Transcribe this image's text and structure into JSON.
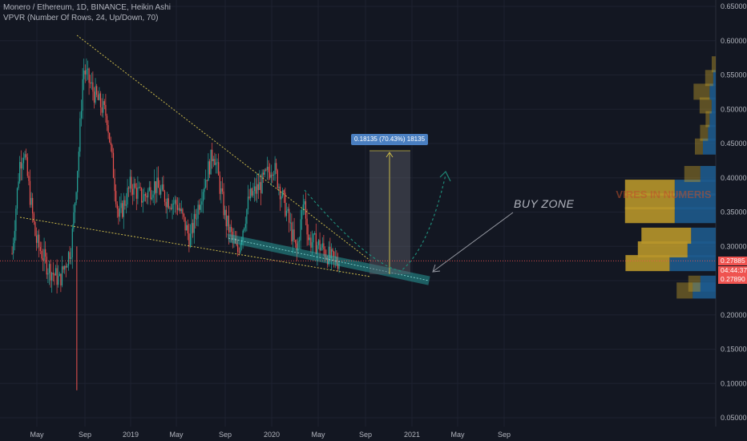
{
  "header": {
    "title": "Monero / Ethereum, 1D, BINANCE, Heikin Ashi",
    "indicator": "VPVR (Number Of Rows, 24, Up/Down, 70)"
  },
  "price_tags": {
    "last": "0.27885",
    "countdown": "04:44:37",
    "low": "0.27890"
  },
  "annotations": {
    "buy_zone": "BUY ZONE",
    "measure": "0.18135 (70.43%) 18135",
    "watermark": "VIRES IN NUMERIS"
  },
  "colors": {
    "background": "#131722",
    "up_candle": "#26a69a",
    "down_candle": "#ef5350",
    "trend_line": "#c9b84a",
    "channel": "#2bb5b0",
    "vp_up": "#1e5a8c",
    "vp_down": "#b8962a",
    "last_price_line": "#ef5350"
  },
  "chart_data": {
    "type": "candlestick",
    "title": "Monero / Ethereum, 1D, BINANCE, Heikin Ashi",
    "y_axis": {
      "ticks": [
        "0.65000",
        "0.60000",
        "0.55000",
        "0.50000",
        "0.45000",
        "0.40000",
        "0.35000",
        "0.30000",
        "0.25000",
        "0.20000",
        "0.15000",
        "0.10000",
        "0.05000"
      ],
      "range": [
        0.05,
        0.65
      ]
    },
    "x_axis": {
      "ticks": [
        "May",
        "Sep",
        "2019",
        "May",
        "Sep",
        "2020",
        "May",
        "Sep",
        "2021",
        "May",
        "Sep"
      ]
    },
    "price_path": [
      {
        "date": "2018-03",
        "price": 0.29
      },
      {
        "date": "2018-03-20",
        "price": 0.42
      },
      {
        "date": "2018-04",
        "price": 0.44
      },
      {
        "date": "2018-05",
        "price": 0.31
      },
      {
        "date": "2018-06",
        "price": 0.27
      },
      {
        "date": "2018-07",
        "price": 0.25
      },
      {
        "date": "2018-08",
        "price": 0.3
      },
      {
        "date": "2018-08-20",
        "price": 0.44
      },
      {
        "date": "2018-09",
        "price": 0.56
      },
      {
        "date": "2018-10",
        "price": 0.52
      },
      {
        "date": "2018-11",
        "price": 0.49
      },
      {
        "date": "2018-12",
        "price": 0.34
      },
      {
        "date": "2019-01",
        "price": 0.39
      },
      {
        "date": "2019-02",
        "price": 0.37
      },
      {
        "date": "2019-03",
        "price": 0.39
      },
      {
        "date": "2019-04",
        "price": 0.37
      },
      {
        "date": "2019-05",
        "price": 0.36
      },
      {
        "date": "2019-06",
        "price": 0.31
      },
      {
        "date": "2019-07",
        "price": 0.38
      },
      {
        "date": "2019-08",
        "price": 0.44
      },
      {
        "date": "2019-09",
        "price": 0.34
      },
      {
        "date": "2019-10",
        "price": 0.29
      },
      {
        "date": "2019-11",
        "price": 0.37
      },
      {
        "date": "2019-12",
        "price": 0.39
      },
      {
        "date": "2020-01",
        "price": 0.42
      },
      {
        "date": "2020-02",
        "price": 0.36
      },
      {
        "date": "2020-03",
        "price": 0.29
      },
      {
        "date": "2020-03-20",
        "price": 0.37
      },
      {
        "date": "2020-04",
        "price": 0.31
      },
      {
        "date": "2020-05",
        "price": 0.3
      },
      {
        "date": "2020-06",
        "price": 0.28
      },
      {
        "date": "2020-06-20",
        "price": 0.279
      }
    ],
    "last_price": 0.27885,
    "volume_profile_rows": [
      {
        "price": 0.275,
        "up": 0.55,
        "down": 0.9
      },
      {
        "price": 0.235,
        "up": 0.2,
        "down": 0.45
      },
      {
        "price": 0.245,
        "up": 0.15,
        "down": 0.3
      },
      {
        "price": 0.295,
        "up": 0.62,
        "down": 0.55
      },
      {
        "price": 0.315,
        "up": 0.62,
        "down": 0.48
      },
      {
        "price": 0.345,
        "up": 0.62,
        "down": 0.8
      },
      {
        "price": 0.365,
        "up": 0.62,
        "down": 0.8
      },
      {
        "price": 0.385,
        "up": 0.62,
        "down": 0.8
      },
      {
        "price": 0.405,
        "up": 0.2,
        "down": 0.3
      },
      {
        "price": 0.445,
        "up": 0.1,
        "down": 0.25
      },
      {
        "price": 0.465,
        "up": 0.1,
        "down": 0.15
      },
      {
        "price": 0.485,
        "up": 0.05,
        "down": 0.12
      },
      {
        "price": 0.505,
        "up": 0.15,
        "down": 0.08
      },
      {
        "price": 0.525,
        "up": 0.2,
        "down": 0.12
      },
      {
        "price": 0.545,
        "up": 0.1,
        "down": 0.05
      },
      {
        "price": 0.565,
        "up": 0.05,
        "down": 0.0
      }
    ]
  }
}
